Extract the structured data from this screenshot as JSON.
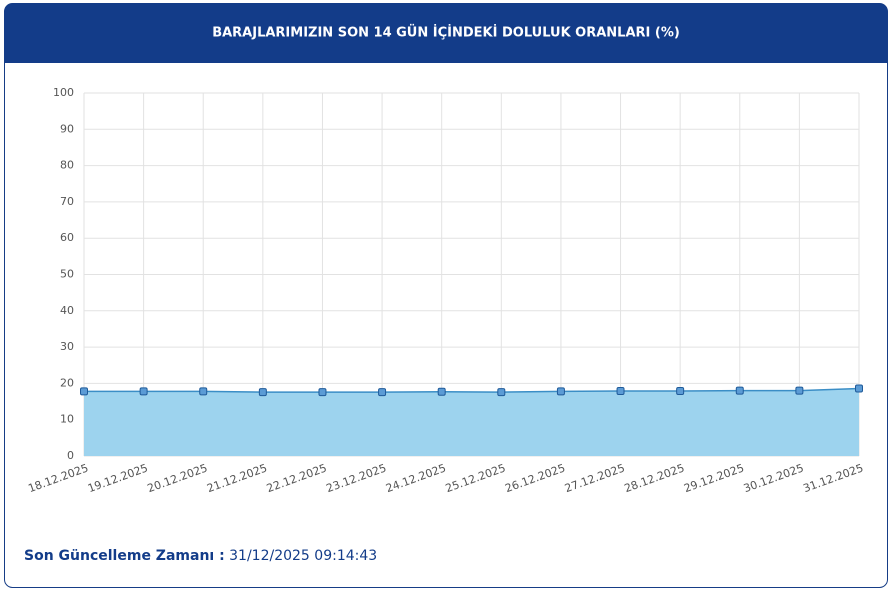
{
  "chart_data": {
    "type": "area",
    "title": "BARAJLARIMIZIN SON 14 GÜN İÇİNDEKİ DOLULUK ORANLARI (%)",
    "categories": [
      "18.12.2025",
      "19.12.2025",
      "20.12.2025",
      "21.12.2025",
      "22.12.2025",
      "23.12.2025",
      "24.12.2025",
      "25.12.2025",
      "26.12.2025",
      "27.12.2025",
      "28.12.2025",
      "29.12.2025",
      "30.12.2025",
      "31.12.2025"
    ],
    "values": [
      17.8,
      17.8,
      17.8,
      17.6,
      17.6,
      17.6,
      17.7,
      17.6,
      17.8,
      17.9,
      17.9,
      18.0,
      18.0,
      18.6
    ],
    "color": "#9dd3ee",
    "ylim": [
      0,
      100
    ],
    "yticks": [
      0,
      10,
      20,
      30,
      40,
      50,
      60,
      70,
      80,
      90,
      100
    ],
    "grid": true
  },
  "footer": {
    "label": "Son Güncelleme Zamanı :",
    "value": "31/12/2025 09:14:43"
  }
}
